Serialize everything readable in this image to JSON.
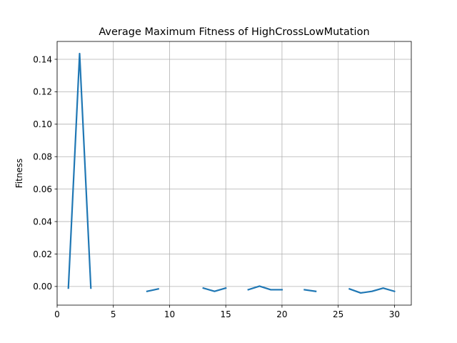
{
  "chart_data": {
    "type": "line",
    "title": "Average Maximum Fitness of HighCrossLowMutation",
    "xlabel": "",
    "ylabel": "Fitness",
    "xlim": [
      0,
      31.5
    ],
    "ylim": [
      -0.0115,
      0.151
    ],
    "xticks": [
      0,
      5,
      10,
      15,
      20,
      25,
      30
    ],
    "yticks": [
      0.0,
      0.02,
      0.04,
      0.06,
      0.08,
      0.1,
      0.12,
      0.14
    ],
    "ytick_labels": [
      "0.00",
      "0.02",
      "0.04",
      "0.06",
      "0.08",
      "0.10",
      "0.12",
      "0.14"
    ],
    "grid": true,
    "series": [
      {
        "color": "#1f77b4",
        "x": [
          1,
          2,
          3,
          4,
          5,
          6,
          7,
          8,
          9,
          10,
          11,
          12,
          13,
          14,
          15,
          16,
          17,
          18,
          19,
          20,
          21,
          22,
          23,
          24,
          25,
          26,
          27,
          28,
          29,
          30
        ],
        "y": [
          -0.001,
          0.1435,
          -0.001,
          null,
          null,
          null,
          null,
          -0.003,
          -0.0015,
          null,
          null,
          null,
          -0.001,
          -0.003,
          -0.001,
          null,
          -0.002,
          0.0002,
          -0.002,
          -0.002,
          null,
          -0.002,
          -0.003,
          null,
          null,
          -0.0015,
          -0.004,
          -0.003,
          -0.001,
          -0.003
        ]
      }
    ]
  }
}
